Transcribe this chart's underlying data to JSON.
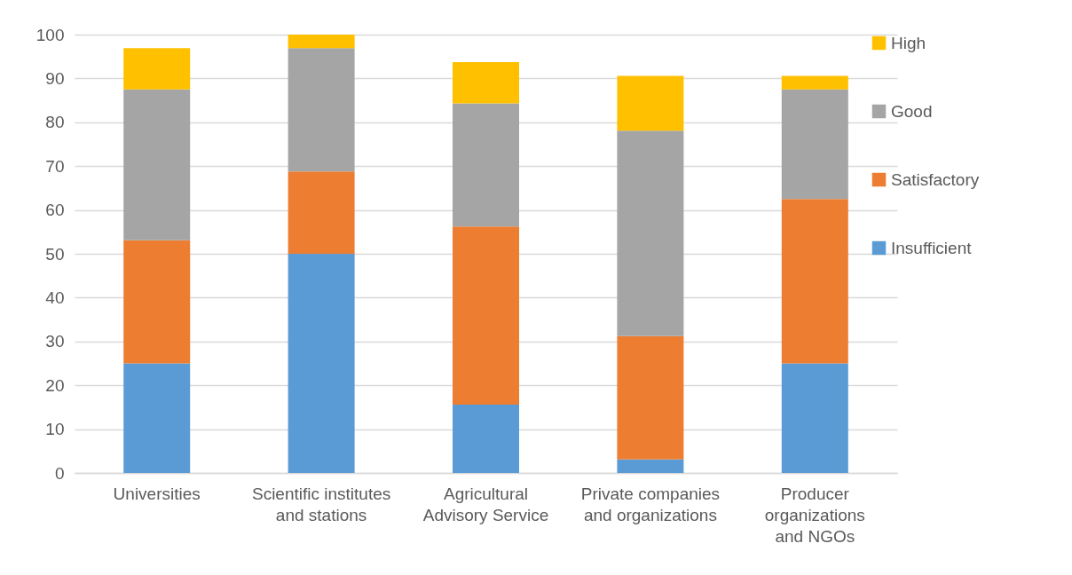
{
  "chart_data": {
    "type": "bar",
    "stacked": true,
    "categories": [
      "Universities",
      "Scientific institutes and stations",
      "Agricultural Advisory Service",
      "Private companies and organizations",
      "Producer organizations and NGOs"
    ],
    "series": [
      {
        "name": "Insufficient",
        "color": "#5b9bd5",
        "values": [
          25,
          50,
          15.6,
          3.1,
          25
        ]
      },
      {
        "name": "Satisfactory",
        "color": "#ed7d31",
        "values": [
          28.1,
          18.8,
          40.6,
          28.1,
          37.5
        ]
      },
      {
        "name": "Good",
        "color": "#a5a5a5",
        "values": [
          34.4,
          28.1,
          28.1,
          46.9,
          25
        ]
      },
      {
        "name": "High",
        "color": "#ffc000",
        "values": [
          9.4,
          3.1,
          9.4,
          12.5,
          3.1
        ]
      }
    ],
    "ylim": [
      0,
      100
    ],
    "yticks": [
      0,
      10,
      20,
      30,
      40,
      50,
      60,
      70,
      80,
      90,
      100
    ],
    "grid": "y",
    "legend": "right"
  }
}
